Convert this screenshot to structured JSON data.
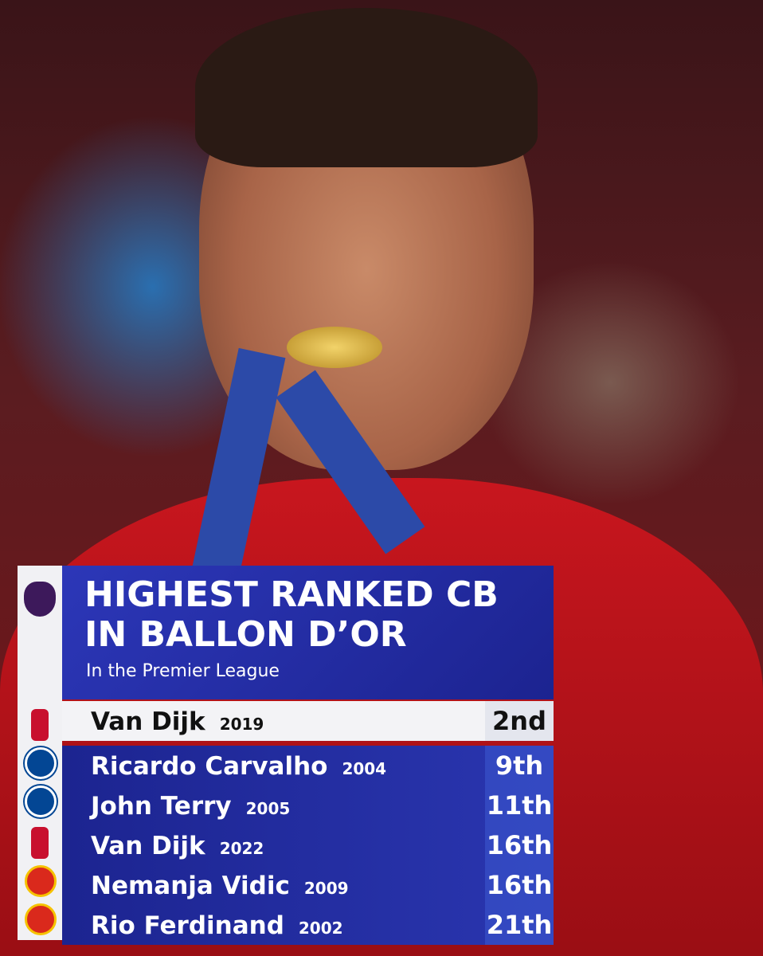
{
  "header": {
    "title_lines": [
      "HIGHEST RANKED CB",
      "IN BALLON D’OR"
    ],
    "subtitle": "In the Premier League"
  },
  "table": {
    "rows": [
      {
        "player": "Van Dijk",
        "year": "2019",
        "rank": "2nd"
      },
      {
        "player": "Ricardo Carvalho",
        "year": "2004",
        "rank": "9th"
      },
      {
        "player": "John Terry",
        "year": "2005",
        "rank": "11th"
      },
      {
        "player": "Van Dijk",
        "year": "2022",
        "rank": "16th"
      },
      {
        "player": "Nemanja Vidic",
        "year": "2009",
        "rank": "16th"
      },
      {
        "player": "Rio Ferdinand",
        "year": "2002",
        "rank": "21th"
      }
    ]
  }
}
